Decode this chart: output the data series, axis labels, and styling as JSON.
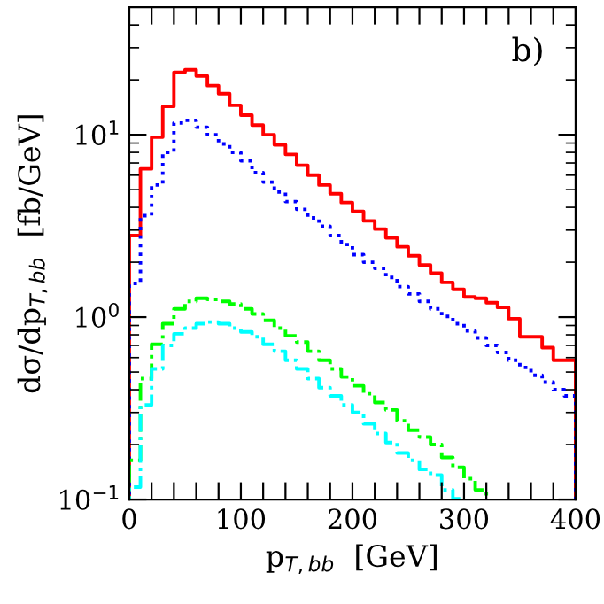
{
  "chart_data": {
    "type": "histogram",
    "xlabel": "p$_{T,bb}$  [GeV]",
    "ylabel": "dσ/dp$_{T,bb}$  [fb/GeV]",
    "log": "y",
    "bins": [
      0,
      10,
      20,
      30,
      40,
      50,
      60,
      70,
      80,
      90,
      100,
      110,
      120,
      130,
      140,
      150,
      160,
      170,
      180,
      190,
      200,
      210,
      220,
      230,
      240,
      250,
      260,
      270,
      280,
      290,
      300,
      310,
      320,
      330,
      340,
      350,
      360,
      370,
      380,
      390,
      400
    ],
    "series": [
      {
        "color": "#ff0000",
        "line_style": "solid",
        "values": [
          2.8,
          6.5,
          9.7,
          14.3,
          22,
          22.7,
          21,
          18.6,
          16.8,
          14.5,
          12.8,
          11.3,
          10,
          8.8,
          7.8,
          6.8,
          6.0,
          5.3,
          4.75,
          4.25,
          3.8,
          3.37,
          3.04,
          2.72,
          2.43,
          2.17,
          1.93,
          1.74,
          1.55,
          1.42,
          1.29,
          1.27,
          1.2,
          1.13,
          0.98,
          0.78,
          0.78,
          0.68,
          0.58,
          0.58
        ]
      },
      {
        "color": "#0000ff",
        "line_style": "dotted",
        "values": [
          1.53,
          3.6,
          5.3,
          8.0,
          11.6,
          12,
          11,
          10,
          8.9,
          8.0,
          7.2,
          6.2,
          5.5,
          4.85,
          4.3,
          3.9,
          3.5,
          3.15,
          2.8,
          2.5,
          2.2,
          2.0,
          1.85,
          1.65,
          1.47,
          1.34,
          1.22,
          1.11,
          1.01,
          0.92,
          0.84,
          0.77,
          0.7,
          0.64,
          0.58,
          0.53,
          0.48,
          0.44,
          0.4,
          0.37
        ]
      },
      {
        "color": "#00ff00",
        "line_style": "dashed",
        "bins": [
          0,
          10,
          20,
          30,
          40,
          50,
          60,
          70,
          80,
          90,
          100,
          110,
          120,
          130,
          140,
          150,
          160,
          170,
          180,
          190,
          200,
          210,
          220,
          230,
          240,
          250,
          260,
          270,
          280,
          290,
          300,
          310,
          320
        ],
        "values": [
          0.164,
          0.46,
          0.71,
          0.92,
          1.11,
          1.22,
          1.27,
          1.25,
          1.22,
          1.18,
          1.11,
          1.04,
          0.96,
          0.87,
          0.79,
          0.73,
          0.65,
          0.58,
          0.52,
          0.47,
          0.42,
          0.38,
          0.34,
          0.31,
          0.27,
          0.24,
          0.22,
          0.2,
          0.17,
          0.15,
          0.13,
          0.113
        ]
      },
      {
        "color": "#00ffff",
        "line_style": "dashed",
        "bins": [
          0,
          10,
          20,
          30,
          40,
          50,
          60,
          70,
          80,
          90,
          100,
          110,
          120,
          130,
          140,
          150,
          160,
          170,
          180,
          190,
          200,
          210,
          220,
          230,
          240,
          250,
          260,
          270,
          280,
          290,
          300
        ],
        "values": [
          0.117,
          0.33,
          0.52,
          0.7,
          0.81,
          0.87,
          0.92,
          0.94,
          0.92,
          0.87,
          0.83,
          0.78,
          0.71,
          0.65,
          0.58,
          0.52,
          0.46,
          0.41,
          0.37,
          0.33,
          0.3,
          0.26,
          0.23,
          0.205,
          0.18,
          0.164,
          0.146,
          0.136,
          0.113,
          0.101
        ]
      }
    ],
    "xlim": [
      0,
      400
    ],
    "ylim": [
      0.1,
      50
    ],
    "xticks": [
      0,
      {
        "value": 20,
        "label": null
      },
      {
        "value": 40,
        "label": null
      },
      {
        "value": 60,
        "label": null
      },
      {
        "value": 80,
        "label": null
      },
      100,
      {
        "value": 120,
        "label": null
      },
      {
        "value": 140,
        "label": null
      },
      {
        "value": 160,
        "label": null
      },
      {
        "value": 180,
        "label": null
      },
      200,
      {
        "value": 220,
        "label": null
      },
      {
        "value": 240,
        "label": null
      },
      {
        "value": 260,
        "label": null
      },
      {
        "value": 280,
        "label": null
      },
      300,
      {
        "value": 320,
        "label": null
      },
      {
        "value": 340,
        "label": null
      },
      {
        "value": 360,
        "label": null
      },
      {
        "value": 380,
        "label": null
      },
      400
    ],
    "yticks": [
      {
        "value": 0.1,
        "label": "10$^{−1}$"
      },
      {
        "value": 1,
        "label": "10$^{0}$"
      },
      {
        "value": 10,
        "label": "10$^{1}$"
      }
    ],
    "annotations": [
      "b)"
    ],
    "grid": false,
    "legend": false
  }
}
